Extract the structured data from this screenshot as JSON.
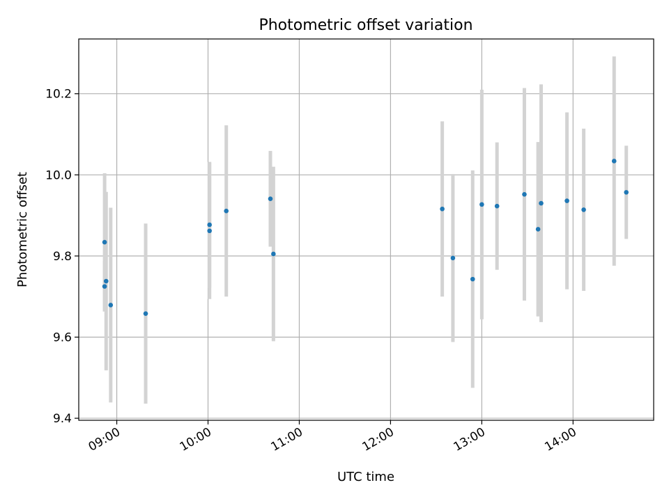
{
  "chart_data": {
    "type": "scatter",
    "title": "Photometric offset variation",
    "xlabel": "UTC time",
    "ylabel": "Photometric offset",
    "x_unit": "time of day (UTC)",
    "xlim": [
      "08:35",
      "14:53"
    ],
    "ylim": [
      9.395,
      10.335
    ],
    "x_ticks": [
      "09:00",
      "10:00",
      "11:00",
      "12:00",
      "13:00",
      "14:00"
    ],
    "y_ticks": [
      "9.4",
      "9.6",
      "9.8",
      "10.0",
      "10.2"
    ],
    "grid": true,
    "marker_color": "#1f77b4",
    "errorbar_color": "#d3d3d3",
    "points": [
      {
        "time": "08:52",
        "y": 9.834,
        "err": 0.17
      },
      {
        "time": "08:52",
        "y": 9.725,
        "err": 0.062
      },
      {
        "time": "08:53",
        "y": 9.738,
        "err": 0.22
      },
      {
        "time": "08:56",
        "y": 9.679,
        "err": 0.24
      },
      {
        "time": "09:19",
        "y": 9.658,
        "err": 0.222
      },
      {
        "time": "10:01",
        "y": 9.877,
        "err": 0.155
      },
      {
        "time": "10:01",
        "y": 9.862,
        "err": 0.168
      },
      {
        "time": "10:12",
        "y": 9.911,
        "err": 0.211
      },
      {
        "time": "10:41",
        "y": 9.941,
        "err": 0.118
      },
      {
        "time": "10:43",
        "y": 9.805,
        "err": 0.215
      },
      {
        "time": "12:34",
        "y": 9.916,
        "err": 0.216
      },
      {
        "time": "12:41",
        "y": 9.795,
        "err": 0.207
      },
      {
        "time": "12:54",
        "y": 9.743,
        "err": 0.268
      },
      {
        "time": "13:00",
        "y": 9.927,
        "err": 0.283
      },
      {
        "time": "13:10",
        "y": 9.923,
        "err": 0.157
      },
      {
        "time": "13:28",
        "y": 9.952,
        "err": 0.262
      },
      {
        "time": "13:37",
        "y": 9.866,
        "err": 0.215
      },
      {
        "time": "13:39",
        "y": 9.93,
        "err": 0.293
      },
      {
        "time": "13:56",
        "y": 9.936,
        "err": 0.218
      },
      {
        "time": "14:07",
        "y": 9.914,
        "err": 0.2
      },
      {
        "time": "14:27",
        "y": 10.034,
        "err": 0.258
      },
      {
        "time": "14:35",
        "y": 9.957,
        "err": 0.115
      }
    ]
  }
}
